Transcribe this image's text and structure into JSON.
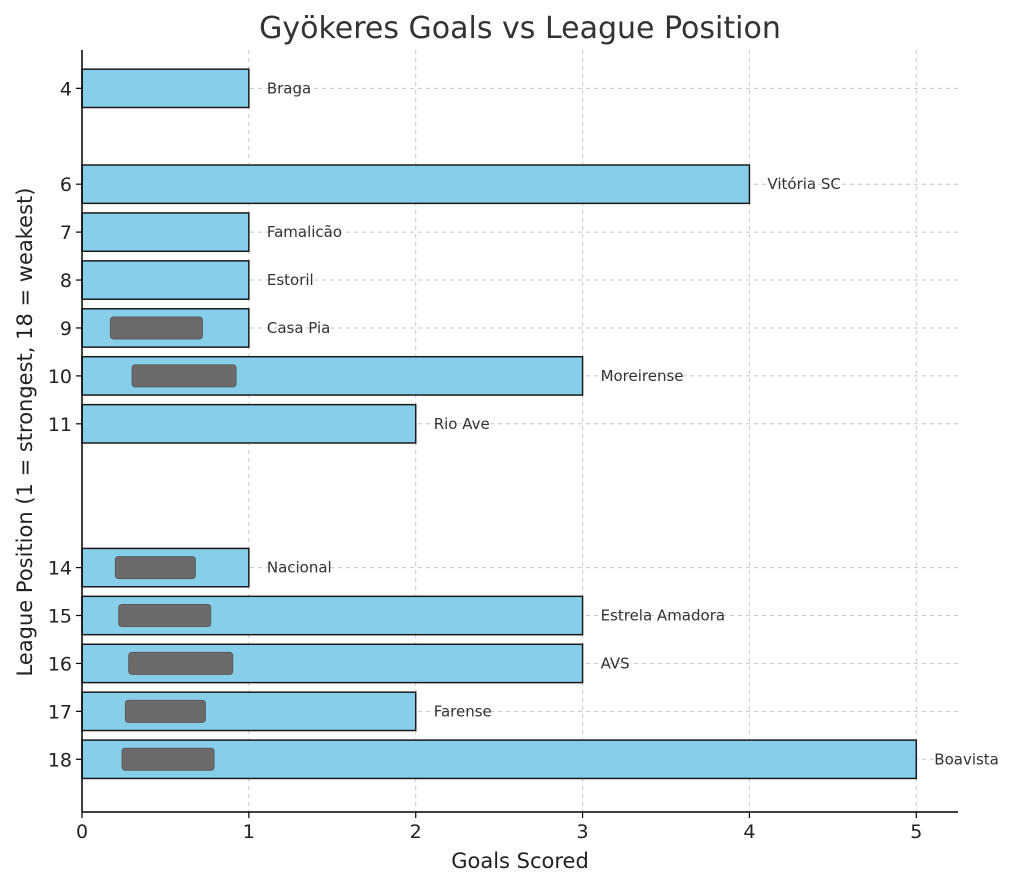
{
  "chart_data": {
    "type": "bar",
    "orientation": "horizontal",
    "title": "Gyökeres Goals vs League Position",
    "xlabel": "Goals Scored",
    "ylabel": "League Position (1 = strongest, 18 = weakest)",
    "xlim": [
      0,
      5.25
    ],
    "ylim": [
      3.2,
      19.1
    ],
    "y_inverted": true,
    "x_ticks": [
      0,
      1,
      2,
      3,
      4,
      5
    ],
    "grid": true,
    "bar_color": "#87ceeb",
    "bar_edge_color": "#1a1a1a",
    "bars": [
      {
        "position": 4,
        "goals": 1,
        "team": "Braga",
        "redacted": false
      },
      {
        "position": 6,
        "goals": 4,
        "team": "Vitória SC",
        "redacted": false
      },
      {
        "position": 7,
        "goals": 1,
        "team": "Famalicão",
        "redacted": false
      },
      {
        "position": 8,
        "goals": 1,
        "team": "Estoril",
        "redacted": false
      },
      {
        "position": 9,
        "goals": 1,
        "team": "Casa Pia",
        "redacted": true
      },
      {
        "position": 10,
        "goals": 3,
        "team": "Moreirense",
        "redacted": true
      },
      {
        "position": 11,
        "goals": 2,
        "team": "Rio Ave",
        "redacted": false
      },
      {
        "position": 14,
        "goals": 1,
        "team": "Nacional",
        "redacted": true
      },
      {
        "position": 15,
        "goals": 3,
        "team": "Estrela Amadora",
        "redacted": true
      },
      {
        "position": 16,
        "goals": 3,
        "team": "AVS",
        "redacted": true
      },
      {
        "position": 17,
        "goals": 2,
        "team": "Farense",
        "redacted": true
      },
      {
        "position": 18,
        "goals": 5,
        "team": "Boavista",
        "redacted": true
      }
    ]
  }
}
